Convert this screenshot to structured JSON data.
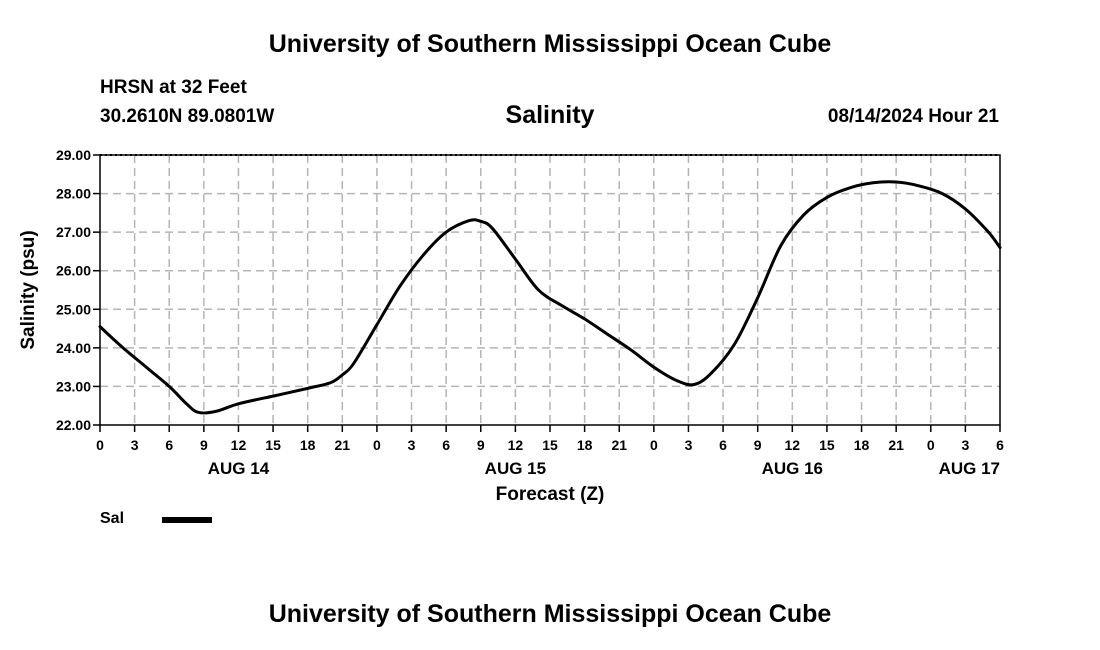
{
  "header": {
    "title_top": "University of Southern Mississippi Ocean Cube",
    "station": "HRSN at 32 Feet",
    "coords": "30.2610N  89.0801W",
    "datetime": "08/14/2024 Hour 21",
    "title_bottom": "University of Southern Mississippi Ocean Cube"
  },
  "chart_data": {
    "type": "line",
    "title": "Salinity",
    "xlabel": "Forecast (Z)",
    "ylabel": "Salinity (psu)",
    "ylim": [
      22,
      29
    ],
    "xlim": [
      0,
      78
    ],
    "x_unit": "hours since 08/14/2024 00Z",
    "y_ticks": [
      "22.00",
      "23.00",
      "24.00",
      "25.00",
      "26.00",
      "27.00",
      "28.00",
      "29.00"
    ],
    "x_ticks": [
      "0",
      "3",
      "6",
      "9",
      "12",
      "15",
      "18",
      "21",
      "0",
      "3",
      "6",
      "9",
      "12",
      "15",
      "18",
      "21",
      "0",
      "3",
      "6",
      "9",
      "12",
      "15",
      "18",
      "21",
      "0",
      "3",
      "6"
    ],
    "day_labels": [
      {
        "label": "AUG 14",
        "hour": 12
      },
      {
        "label": "AUG 15",
        "hour": 36
      },
      {
        "label": "AUG 16",
        "hour": 60
      },
      {
        "label": "AUG 17",
        "hour": 72
      }
    ],
    "grid": true,
    "color": "#000000",
    "series": [
      {
        "name": "Sal",
        "x": [
          0,
          2,
          4,
          6,
          7.5,
          8.5,
          10,
          12,
          15,
          18,
          20,
          21,
          22,
          24,
          26,
          28,
          30,
          32,
          33,
          34,
          36,
          38,
          40,
          42,
          44,
          46,
          48,
          50,
          51.5,
          53,
          55,
          57,
          59,
          61,
          63,
          65,
          67,
          69,
          71,
          73,
          75,
          77,
          78
        ],
        "values": [
          24.55,
          24.0,
          23.5,
          23.0,
          22.55,
          22.33,
          22.35,
          22.55,
          22.75,
          22.95,
          23.1,
          23.3,
          23.6,
          24.6,
          25.6,
          26.4,
          27.0,
          27.3,
          27.28,
          27.1,
          26.3,
          25.5,
          25.1,
          24.75,
          24.35,
          23.95,
          23.5,
          23.15,
          23.05,
          23.35,
          24.1,
          25.3,
          26.65,
          27.45,
          27.9,
          28.15,
          28.28,
          28.3,
          28.2,
          28.0,
          27.6,
          27.0,
          26.6
        ]
      }
    ]
  },
  "legend": {
    "label": "Sal"
  }
}
